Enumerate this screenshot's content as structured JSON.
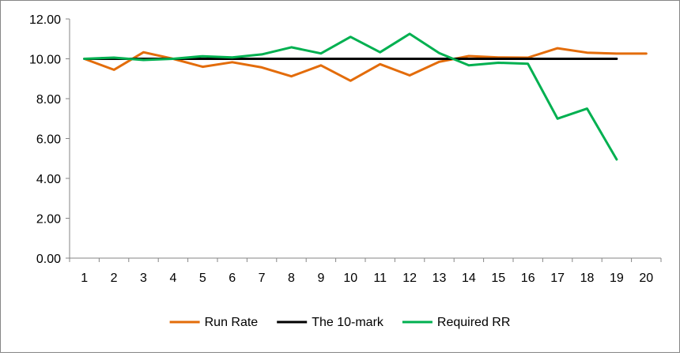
{
  "chart_data": {
    "type": "line",
    "title": "",
    "xlabel": "",
    "ylabel": "",
    "x": [
      1,
      2,
      3,
      4,
      5,
      6,
      7,
      8,
      9,
      10,
      11,
      12,
      13,
      14,
      15,
      16,
      17,
      18,
      19,
      20
    ],
    "x_tick_labels": [
      "1",
      "2",
      "3",
      "4",
      "5",
      "6",
      "7",
      "8",
      "9",
      "10",
      "11",
      "12",
      "13",
      "14",
      "15",
      "16",
      "17",
      "18",
      "19",
      "20"
    ],
    "ylim": [
      0,
      12
    ],
    "y_ticks": [
      0,
      2,
      4,
      6,
      8,
      10,
      12
    ],
    "y_tick_labels": [
      "0.00",
      "2.00",
      "4.00",
      "6.00",
      "8.00",
      "10.00",
      "12.00"
    ],
    "grid": false,
    "legend_position": "bottom",
    "series": [
      {
        "name": "Run Rate",
        "color": "#E36C0A",
        "values": [
          10.0,
          9.45,
          10.33,
          10.0,
          9.6,
          9.83,
          9.57,
          9.12,
          9.67,
          8.9,
          9.73,
          9.17,
          9.85,
          10.14,
          10.07,
          10.06,
          10.53,
          10.31,
          10.26,
          10.26
        ]
      },
      {
        "name": "The 10-mark",
        "color": "#000000",
        "values": [
          10.0,
          10.0,
          10.0,
          10.0,
          10.0,
          10.0,
          10.0,
          10.0,
          10.0,
          10.0,
          10.0,
          10.0,
          10.0,
          10.0,
          10.0,
          10.0,
          10.0,
          10.0,
          10.0,
          null
        ]
      },
      {
        "name": "Required RR",
        "color": "#00B050",
        "values": [
          10.0,
          10.06,
          9.94,
          10.0,
          10.13,
          10.07,
          10.22,
          10.58,
          10.27,
          11.1,
          10.33,
          11.25,
          10.29,
          9.67,
          9.8,
          9.75,
          7.0,
          7.5,
          4.95,
          null
        ]
      }
    ]
  }
}
